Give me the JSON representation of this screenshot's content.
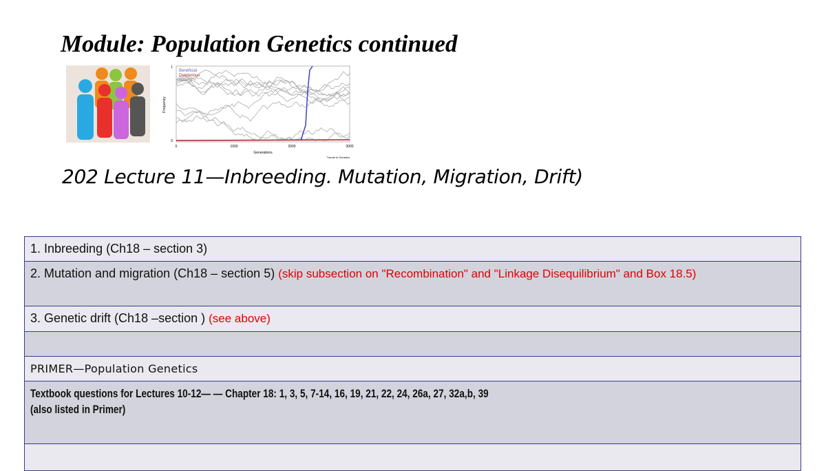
{
  "header": {
    "title": "Module: Population Genetics continued"
  },
  "figure": {
    "legend": [
      "Beneficial",
      "Deleterious",
      "Neutral"
    ],
    "y_label": "Frequency",
    "x_label": "Generations",
    "yticks": [
      0,
      1
    ],
    "xticks": [
      0,
      1000,
      2000,
      3000
    ],
    "source": "Trends in Genetics"
  },
  "subtitle": "202 Lecture 11—Inbreeding. Mutation, Migration, Drift)",
  "table": {
    "rows": [
      {
        "text": "1. Inbreeding (Ch18 – section 3)"
      },
      {
        "text": "2. Mutation and migration (Ch18 – section 5)",
        "note": "(skip subsection on \"Recombination\" and \"Linkage Disequilibrium\" and Box 18.5)"
      },
      {
        "text": "3. Genetic drift (Ch18 –section )",
        "note": "(see above)"
      },
      {
        "text": ""
      },
      {
        "text": "PRIMER—Population Genetics"
      },
      {
        "lines": [
          "Textbook questions for  Lectures 10-12— — Chapter 18: 1, 3, 5, 7-14, 16, 19, 21, 22, 24, 26a, 27, 32a,b, 39",
          "(also listed in Primer)"
        ]
      },
      {
        "text": ""
      }
    ]
  }
}
